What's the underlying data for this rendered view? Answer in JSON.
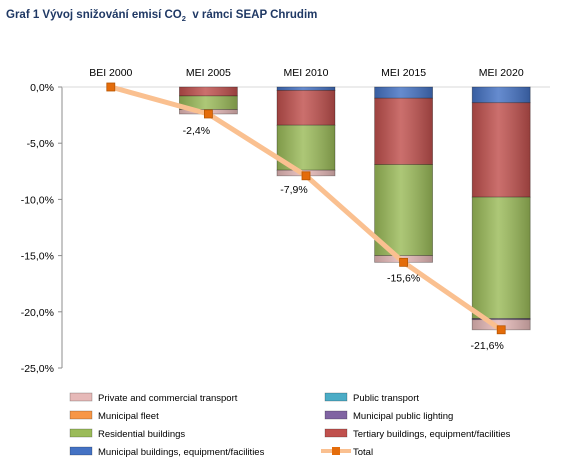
{
  "chart_data": {
    "type": "bar",
    "stacked": true,
    "title": {
      "prefix": "Graf 1 Vývoj snižování emisí CO",
      "subscript": "2",
      "suffix": "  v rámci SEAP Chrudim"
    },
    "categories": [
      "BEI 2000",
      "MEI 2005",
      "MEI 2010",
      "MEI 2015",
      "MEI 2020"
    ],
    "ylim": [
      -25,
      0
    ],
    "yticks": [
      0,
      -5,
      -10,
      -15,
      -20,
      -25
    ],
    "ytick_labels": [
      "0,0%",
      "-5,0%",
      "-10,0%",
      "-15,0%",
      "-20,0%",
      "-25,0%"
    ],
    "grid": false,
    "legend_position": "bottom",
    "series": [
      {
        "name": "Municipal buildings, equipment/facilities",
        "color": "#4472c4",
        "values": [
          0,
          0,
          -0.3,
          -1.0,
          -1.4
        ]
      },
      {
        "name": "Tertiary buildings, equipment/facilities",
        "color": "#c0504d",
        "values": [
          0,
          -0.8,
          -3.1,
          -5.9,
          -8.4
        ]
      },
      {
        "name": "Residential buildings",
        "color": "#9bbb59",
        "values": [
          0,
          -1.2,
          -4.0,
          -8.1,
          -10.8
        ]
      },
      {
        "name": "Municipal public lighting",
        "color": "#8064a2",
        "values": [
          0,
          0,
          0,
          0,
          -0.1
        ]
      },
      {
        "name": "Municipal fleet",
        "color": "#f79646",
        "values": [
          0,
          0,
          0,
          0,
          0
        ]
      },
      {
        "name": "Public transport",
        "color": "#4bacc6",
        "values": [
          0,
          0,
          0,
          0,
          0
        ]
      },
      {
        "name": "Private and commercial transport",
        "color": "#e6b9b8",
        "values": [
          0,
          -0.4,
          -0.5,
          -0.6,
          -0.9
        ]
      }
    ],
    "total": {
      "name": "Total",
      "color": "#fac090",
      "marker_color": "#e46c0a",
      "values": [
        0,
        -2.4,
        -7.9,
        -15.6,
        -21.6
      ],
      "labels": [
        "",
        "-2,4%",
        "-7,9%",
        "-15,6%",
        "-21,6%"
      ]
    },
    "legend": [
      [
        "Private and commercial transport",
        "Public transport"
      ],
      [
        "Municipal fleet",
        "Municipal public lighting"
      ],
      [
        "Residential buildings",
        "Tertiary buildings, equipment/facilities"
      ],
      [
        "Municipal buildings, equipment/facilities",
        "Total"
      ]
    ]
  }
}
